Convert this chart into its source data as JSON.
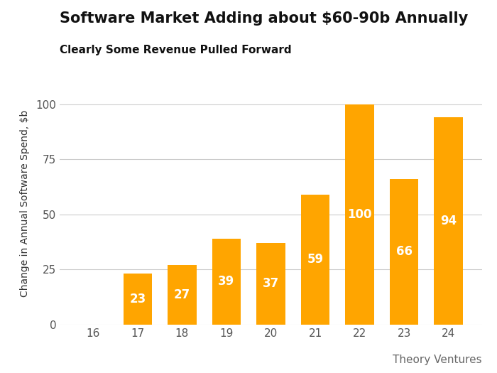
{
  "title": "Software Market Adding about $60-90b Annually",
  "subtitle": "Clearly Some Revenue Pulled Forward",
  "ylabel": "Change in Annual Software Spend, $b",
  "categories": [
    16,
    17,
    18,
    19,
    20,
    21,
    22,
    23,
    24
  ],
  "values": [
    0,
    23,
    27,
    39,
    37,
    59,
    100,
    66,
    94
  ],
  "bar_color": "#FFA500",
  "label_color": "#FFFFFF",
  "background_color": "#FFFFFF",
  "grid_color": "#CCCCCC",
  "title_fontsize": 15,
  "subtitle_fontsize": 11,
  "ylabel_fontsize": 10,
  "tick_fontsize": 11,
  "label_fontsize": 12,
  "watermark": "Theory Ventures",
  "watermark_fontsize": 11,
  "ylim": [
    0,
    110
  ],
  "yticks": [
    0,
    25,
    50,
    75,
    100
  ]
}
